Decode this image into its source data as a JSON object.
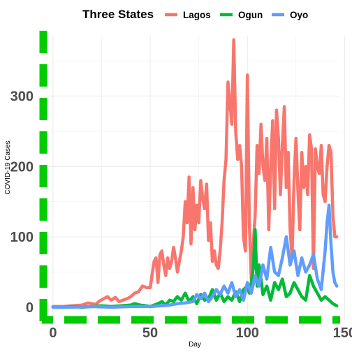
{
  "chart_data": {
    "type": "line",
    "title": "",
    "xlabel": "Day",
    "ylabel": "COVID-19 Cases",
    "legend_title": "Three States",
    "legend_position": "top",
    "xlim": [
      -5,
      147
    ],
    "ylim": [
      -18,
      385
    ],
    "x_ticks": [
      0,
      50,
      100,
      150
    ],
    "y_ticks": [
      0,
      100,
      200,
      300
    ],
    "grid": true,
    "axis_line_color": "#00cc00",
    "series": [
      {
        "name": "Lagos",
        "color": "#f8766d",
        "x": [
          0,
          5,
          10,
          15,
          18,
          20,
          22,
          24,
          26,
          28,
          30,
          32,
          34,
          36,
          38,
          40,
          42,
          44,
          46,
          48,
          50,
          52,
          53,
          54,
          55,
          56,
          57,
          58,
          59,
          60,
          61,
          62,
          63,
          64,
          65,
          66,
          67,
          68,
          69,
          70,
          71,
          72,
          73,
          74,
          75,
          76,
          77,
          78,
          79,
          80,
          81,
          82,
          83,
          84,
          85,
          86,
          87,
          88,
          89,
          90,
          91,
          92,
          93,
          94,
          95,
          96,
          97,
          98,
          99,
          100,
          101,
          102,
          103,
          104,
          105,
          106,
          107,
          108,
          109,
          110,
          111,
          112,
          113,
          114,
          115,
          116,
          117,
          118,
          119,
          120,
          121,
          122,
          123,
          124,
          125,
          126,
          127,
          128,
          129,
          130,
          131,
          132,
          133,
          134,
          135,
          136,
          137,
          138,
          139,
          140,
          141,
          142,
          143,
          144,
          145,
          146
        ],
        "values": [
          1,
          1,
          2,
          3,
          6,
          5,
          4,
          9,
          12,
          15,
          10,
          14,
          8,
          10,
          12,
          15,
          20,
          22,
          30,
          28,
          28,
          65,
          70,
          35,
          75,
          80,
          60,
          45,
          70,
          55,
          65,
          85,
          70,
          50,
          65,
          80,
          100,
          150,
          120,
          185,
          90,
          170,
          110,
          145,
          120,
          180,
          155,
          140,
          175,
          95,
          120,
          65,
          80,
          60,
          55,
          80,
          120,
          180,
          210,
          320,
          290,
          260,
          380,
          250,
          210,
          230,
          200,
          100,
          80,
          330,
          120,
          40,
          90,
          130,
          230,
          190,
          260,
          200,
          180,
          240,
          110,
          200,
          265,
          140,
          280,
          240,
          160,
          230,
          285,
          170,
          220,
          110,
          70,
          180,
          240,
          165,
          110,
          220,
          170,
          200,
          160,
          245,
          225,
          55,
          225,
          200,
          190,
          230,
          160,
          150,
          200,
          230,
          220,
          130,
          100,
          100
        ]
      },
      {
        "name": "Ogun",
        "color": "#00ba38",
        "x": [
          0,
          5,
          10,
          15,
          20,
          25,
          30,
          35,
          40,
          42,
          45,
          48,
          50,
          52,
          54,
          56,
          58,
          60,
          62,
          64,
          66,
          68,
          70,
          72,
          74,
          76,
          78,
          80,
          82,
          84,
          86,
          88,
          90,
          92,
          94,
          96,
          98,
          100,
          101,
          102,
          103,
          104,
          105,
          106,
          107,
          108,
          110,
          112,
          114,
          116,
          118,
          120,
          122,
          124,
          126,
          128,
          130,
          132,
          134,
          136,
          138,
          140,
          142,
          144,
          146
        ],
        "values": [
          0,
          0,
          1,
          0,
          1,
          2,
          1,
          2,
          3,
          5,
          3,
          2,
          1,
          3,
          5,
          8,
          3,
          10,
          8,
          15,
          10,
          20,
          8,
          15,
          5,
          18,
          10,
          12,
          25,
          10,
          20,
          8,
          15,
          10,
          22,
          8,
          25,
          30,
          20,
          35,
          55,
          110,
          30,
          60,
          40,
          18,
          30,
          10,
          35,
          25,
          40,
          15,
          20,
          35,
          25,
          15,
          10,
          45,
          30,
          20,
          10,
          15,
          10,
          5,
          2
        ]
      },
      {
        "name": "Oyo",
        "color": "#619cff",
        "x": [
          0,
          10,
          20,
          30,
          40,
          50,
          55,
          60,
          64,
          68,
          72,
          74,
          76,
          78,
          80,
          82,
          84,
          86,
          88,
          90,
          92,
          94,
          96,
          98,
          100,
          102,
          104,
          106,
          108,
          110,
          112,
          114,
          116,
          118,
          120,
          122,
          124,
          126,
          128,
          130,
          132,
          134,
          136,
          138,
          140,
          141,
          142,
          143,
          144,
          145,
          146
        ],
        "values": [
          0,
          0,
          1,
          0,
          1,
          1,
          2,
          3,
          5,
          6,
          8,
          18,
          12,
          20,
          8,
          15,
          25,
          18,
          30,
          20,
          35,
          15,
          25,
          10,
          35,
          20,
          45,
          30,
          60,
          40,
          85,
          50,
          45,
          70,
          100,
          60,
          80,
          45,
          70,
          50,
          60,
          75,
          40,
          25,
          80,
          120,
          145,
          90,
          50,
          35,
          30
        ]
      }
    ]
  }
}
